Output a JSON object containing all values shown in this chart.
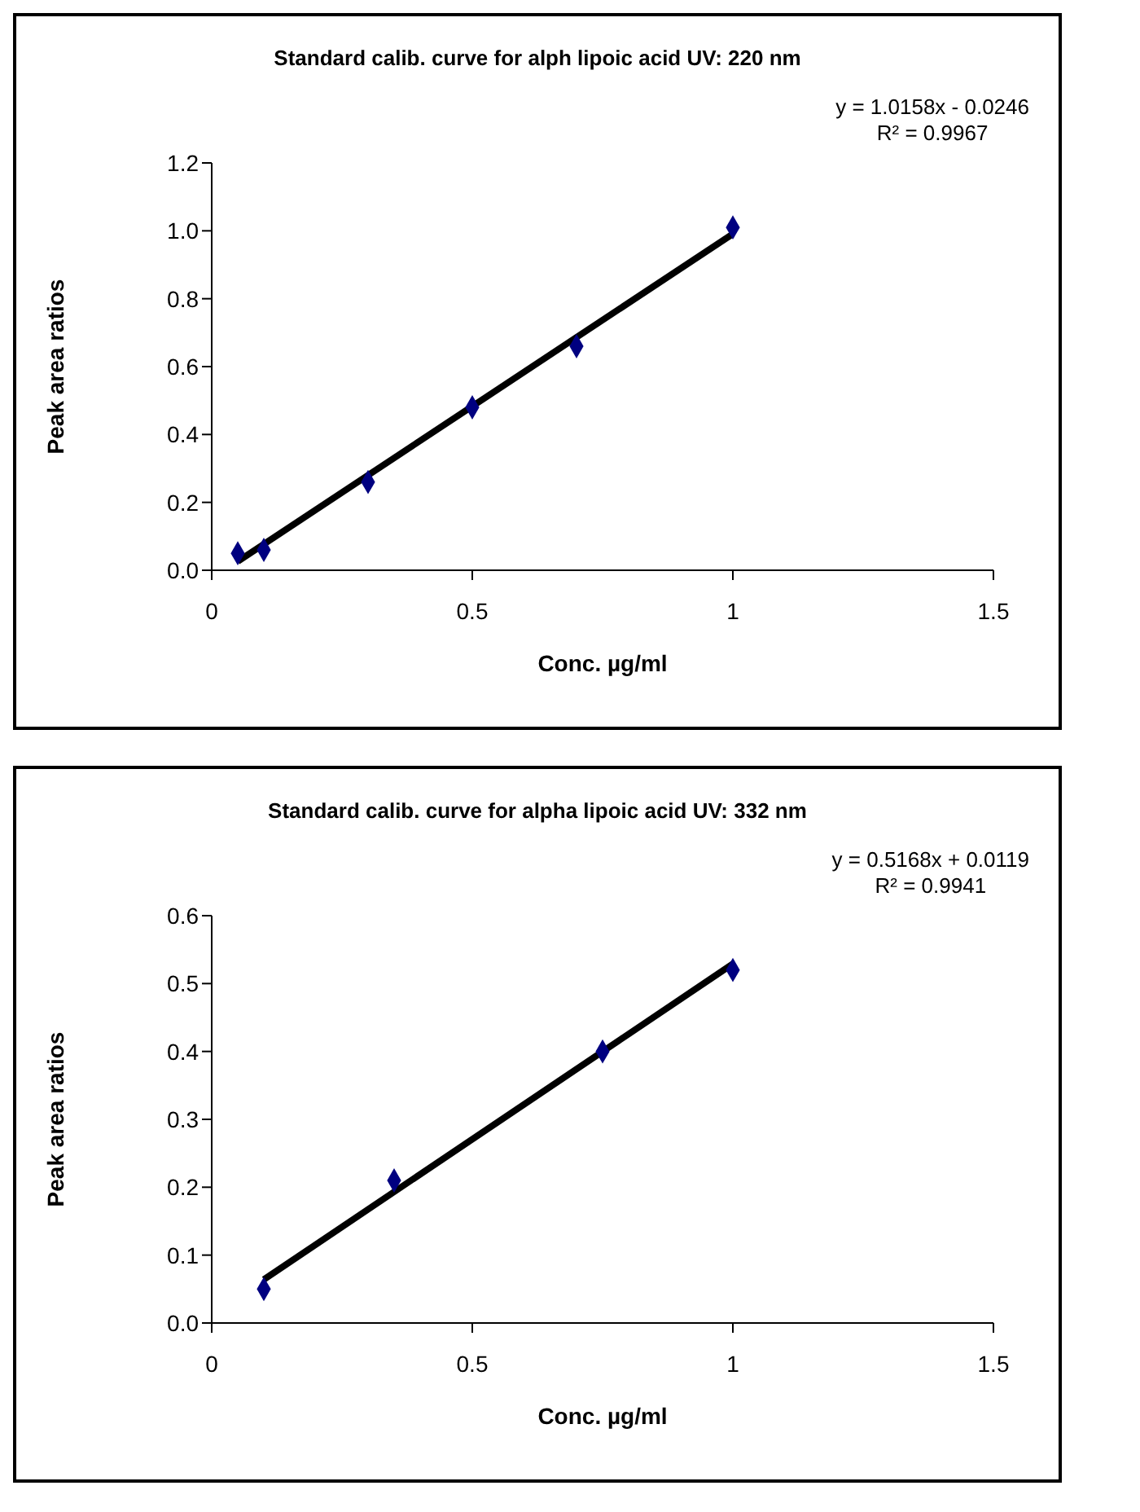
{
  "chart_data": [
    {
      "type": "scatter",
      "title": "Standard calib. curve for alph lipoic acid UV: 220 nm",
      "xlabel": "Conc. µg/ml",
      "ylabel": "Peak area ratios",
      "annotations": [
        "y = 1.0158x - 0.0246",
        "R² = 0.9967"
      ],
      "xlim": [
        0,
        1.5
      ],
      "xticks": [
        0,
        0.5,
        1,
        1.5
      ],
      "ylim": [
        0,
        1.2
      ],
      "yticks": [
        {
          "value": 0,
          "label": "0.0"
        },
        {
          "value": 0.2,
          "label": "0.2"
        },
        {
          "value": 0.4,
          "label": "0.4"
        },
        {
          "value": 0.6,
          "label": "0.6"
        },
        {
          "value": 0.8,
          "label": "0.8"
        },
        {
          "value": 1,
          "label": "1.0"
        },
        {
          "value": 1.2,
          "label": "1.2"
        }
      ],
      "series": [
        {
          "type": "scatter",
          "color": "#000080",
          "marker": "diamond",
          "x": [
            0.05,
            0.1,
            0.3,
            0.5,
            0.7,
            1.0
          ],
          "values": [
            0.05,
            0.06,
            0.26,
            0.48,
            0.66,
            1.01
          ]
        },
        {
          "type": "line",
          "color": "#000000",
          "marker": "none",
          "line_style": "solid",
          "x": [
            0.05,
            1.0
          ],
          "values": [
            0.026,
            0.991
          ]
        }
      ]
    },
    {
      "type": "scatter",
      "title": "Standard calib. curve for alpha lipoic acid UV: 332 nm",
      "xlabel": "Conc. µg/ml",
      "ylabel": "Peak area ratios",
      "annotations": [
        "y = 0.5168x + 0.0119",
        "R² = 0.9941"
      ],
      "xlim": [
        0,
        1.5
      ],
      "xticks": [
        0,
        0.5,
        1,
        1.5
      ],
      "ylim": [
        0,
        0.6
      ],
      "yticks": [
        {
          "value": 0,
          "label": "0.0"
        },
        {
          "value": 0.1,
          "label": "0.1"
        },
        {
          "value": 0.2,
          "label": "0.2"
        },
        {
          "value": 0.3,
          "label": "0.3"
        },
        {
          "value": 0.4,
          "label": "0.4"
        },
        {
          "value": 0.5,
          "label": "0.5"
        },
        {
          "value": 0.6,
          "label": "0.6"
        }
      ],
      "series": [
        {
          "type": "scatter",
          "color": "#000080",
          "marker": "diamond",
          "x": [
            0.1,
            0.35,
            0.75,
            1.0
          ],
          "values": [
            0.05,
            0.21,
            0.4,
            0.52
          ]
        },
        {
          "type": "line",
          "color": "#000000",
          "marker": "none",
          "line_style": "solid",
          "x": [
            0.1,
            1.0
          ],
          "values": [
            0.064,
            0.529
          ]
        }
      ]
    }
  ]
}
